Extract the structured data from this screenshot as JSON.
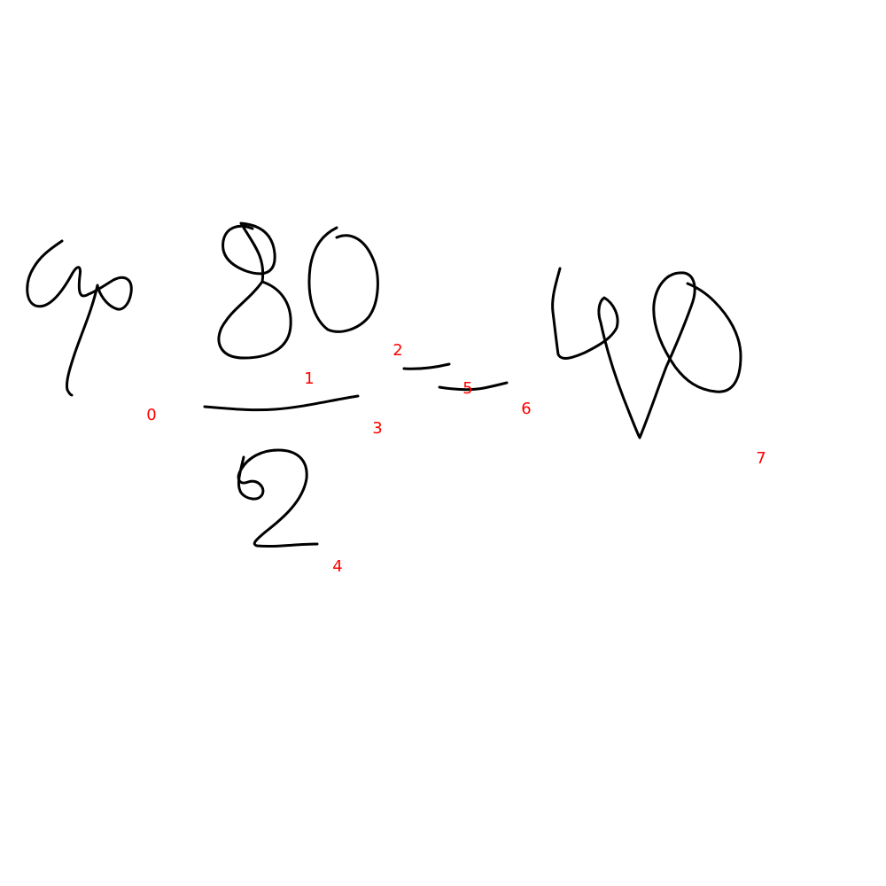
{
  "stroke_color": "#000000",
  "label_color": "#ff0000",
  "strokes": [
    {
      "index_label": "0",
      "symbol": "φ"
    },
    {
      "index_label": "1",
      "symbol": "8"
    },
    {
      "index_label": "2",
      "symbol": "0"
    },
    {
      "index_label": "3",
      "symbol": "fraction-bar"
    },
    {
      "index_label": "4",
      "symbol": "2"
    },
    {
      "index_label": "5",
      "symbol": "equals-top-bar"
    },
    {
      "index_label": "6",
      "symbol": "equals-bottom-bar"
    },
    {
      "index_label": "7",
      "symbol": "4"
    }
  ]
}
